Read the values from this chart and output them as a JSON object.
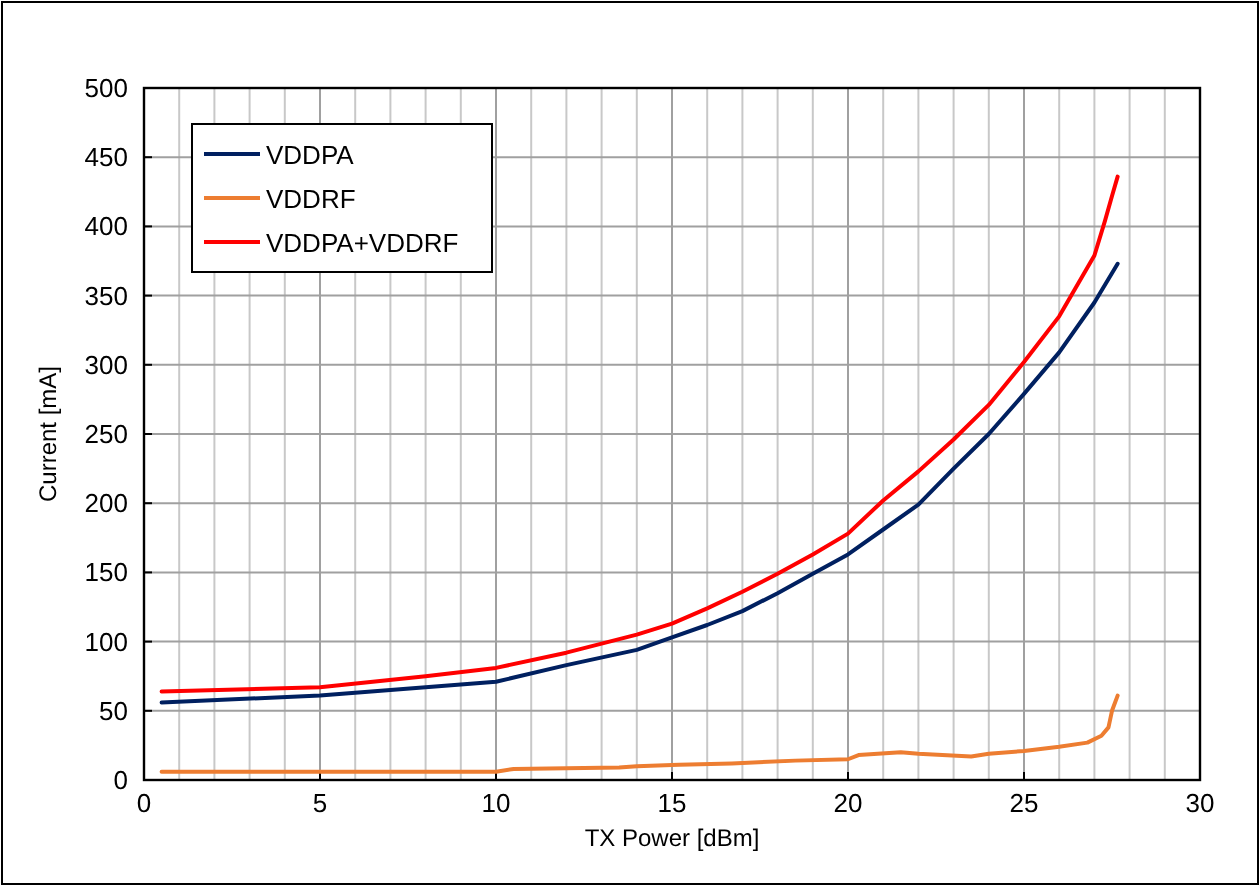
{
  "chart_data": {
    "type": "line",
    "xlabel": "TX Power [dBm]",
    "ylabel": "Current [mA]",
    "xlim": [
      0,
      30
    ],
    "ylim": [
      0,
      500
    ],
    "xticks": [
      0,
      {
        "value": 1,
        "label": null
      },
      {
        "value": 2,
        "label": null
      },
      {
        "value": 3,
        "label": null
      },
      {
        "value": 4,
        "label": null
      },
      5,
      {
        "value": 6,
        "label": null
      },
      {
        "value": 7,
        "label": null
      },
      {
        "value": 8,
        "label": null
      },
      {
        "value": 9,
        "label": null
      },
      10,
      {
        "value": 11,
        "label": null
      },
      {
        "value": 12,
        "label": null
      },
      {
        "value": 13,
        "label": null
      },
      {
        "value": 14,
        "label": null
      },
      15,
      {
        "value": 16,
        "label": null
      },
      {
        "value": 17,
        "label": null
      },
      {
        "value": 18,
        "label": null
      },
      {
        "value": 19,
        "label": null
      },
      20,
      {
        "value": 21,
        "label": null
      },
      {
        "value": 22,
        "label": null
      },
      {
        "value": 23,
        "label": null
      },
      {
        "value": 24,
        "label": null
      },
      25,
      {
        "value": 26,
        "label": null
      },
      {
        "value": 27,
        "label": null
      },
      {
        "value": 28,
        "label": null
      },
      {
        "value": 29,
        "label": null
      },
      30
    ],
    "yticks": [
      0,
      50,
      100,
      150,
      200,
      250,
      300,
      350,
      400,
      450,
      500
    ],
    "grid": true,
    "legend": "top left",
    "marker": "none",
    "line_style": "solid",
    "series": [
      {
        "name": "VDDPA",
        "color": "#002060",
        "x": [
          0.5,
          5,
          10,
          12,
          14,
          15,
          16,
          17,
          18,
          19,
          20,
          21,
          22,
          23,
          24,
          25,
          26,
          27,
          27.66
        ],
        "values": [
          56,
          61,
          71,
          83,
          94,
          103,
          112,
          122,
          135,
          149,
          163,
          181,
          199,
          225,
          250,
          279,
          309,
          345,
          373
        ]
      },
      {
        "name": "VDDRF",
        "color": "#ed7d31",
        "x": [
          0.5,
          10,
          10.5,
          13.5,
          14,
          15.2,
          16.7,
          18.5,
          20,
          20.3,
          21.5,
          22,
          23.5,
          24,
          25,
          26,
          26.8,
          27.2,
          27.4,
          27.5,
          27.66
        ],
        "values": [
          6,
          6,
          8,
          9,
          10,
          11,
          12,
          14,
          15,
          18,
          20,
          19,
          17,
          19,
          21,
          24,
          27,
          32,
          38,
          50,
          61
        ]
      },
      {
        "name": "VDDPA+VDDRF",
        "color": "#ff0000",
        "x": [
          0.5,
          5,
          8,
          10,
          12,
          14,
          15,
          16,
          17,
          18,
          19,
          20,
          21,
          22,
          23,
          24,
          25,
          26,
          27,
          27.3,
          27.5,
          27.66
        ],
        "values": [
          64,
          67,
          75,
          81,
          92,
          105,
          113,
          124,
          136,
          149,
          163,
          178,
          202,
          223,
          246,
          271,
          302,
          335,
          379,
          404,
          422,
          436
        ]
      }
    ]
  }
}
